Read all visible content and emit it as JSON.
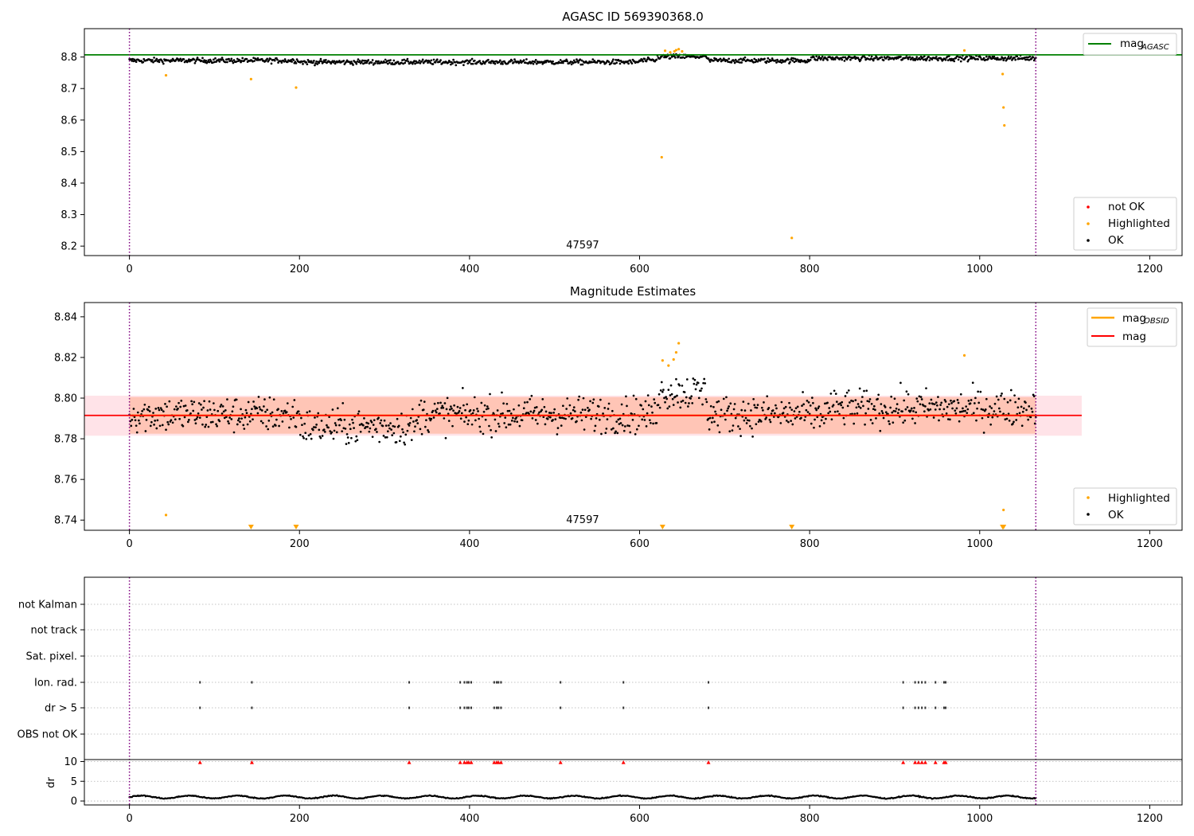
{
  "chart_data": [
    {
      "type": "scatter",
      "title": "AGASC ID 569390368.0",
      "xlim": [
        -53,
        1238
      ],
      "ylim": [
        8.17,
        8.89
      ],
      "xticks": [
        0,
        200,
        400,
        600,
        800,
        1000,
        1200
      ],
      "xtick_labels": [
        "0",
        "200",
        "400",
        "600",
        "800",
        "1000",
        "1200"
      ],
      "yticks": [
        8.2,
        8.3,
        8.4,
        8.5,
        8.6,
        8.7,
        8.8
      ],
      "ytick_labels": [
        "8.2",
        "8.3",
        "8.4",
        "8.5",
        "8.6",
        "8.7",
        "8.8"
      ],
      "obsid_label": "47597",
      "obsid_label_x": 533,
      "obs_bounds": [
        0,
        1066
      ],
      "mag_agasc": 8.807,
      "legend_lines": [
        {
          "label": "mag",
          "sub": "AGASC",
          "color": "#008000"
        }
      ],
      "legend_points": [
        {
          "label": "not OK",
          "color": "#ff0000"
        },
        {
          "label": "Highlighted",
          "color": "#ffa500"
        },
        {
          "label": "OK",
          "color": "#000000"
        }
      ],
      "series": [
        {
          "name": "OK",
          "color": "#000000",
          "base": 8.79,
          "noise": 0.02
        },
        {
          "name": "Highlighted",
          "color": "#ffa500",
          "x": [
            43,
            143,
            196,
            626,
            630,
            636,
            641,
            643,
            646,
            650,
            779,
            982,
            1027,
            1028,
            1029
          ],
          "y": [
            8.742,
            8.73,
            8.703,
            8.482,
            8.82,
            8.815,
            8.818,
            8.822,
            8.825,
            8.818,
            8.226,
            8.821,
            8.746,
            8.64,
            8.583
          ]
        }
      ]
    },
    {
      "type": "scatter",
      "title": "Magnitude Estimates",
      "xlim": [
        -53,
        1238
      ],
      "ylim": [
        8.735,
        8.847
      ],
      "xticks": [
        0,
        200,
        400,
        600,
        800,
        1000,
        1200
      ],
      "xtick_labels": [
        "0",
        "200",
        "400",
        "600",
        "800",
        "1000",
        "1200"
      ],
      "yticks": [
        8.74,
        8.76,
        8.78,
        8.8,
        8.82,
        8.84
      ],
      "ytick_labels": [
        "8.74",
        "8.76",
        "8.78",
        "8.80",
        "8.82",
        "8.84"
      ],
      "obsid_label": "47597",
      "obsid_label_x": 533,
      "obs_bounds": [
        0,
        1066
      ],
      "mag_obsid": 8.7915,
      "mag": 8.7915,
      "band_obsid": [
        8.7825,
        8.8005
      ],
      "band_mag": [
        8.7815,
        8.8012
      ],
      "legend_lines": [
        {
          "label": "mag",
          "sub": "OBSID",
          "color": "#ffa500"
        },
        {
          "label": "mag",
          "sub": "",
          "color": "#ff0000"
        }
      ],
      "legend_points": [
        {
          "label": "Highlighted",
          "color": "#ffa500"
        },
        {
          "label": "OK",
          "color": "#000000"
        }
      ],
      "series": [
        {
          "name": "OK",
          "color": "#000000"
        },
        {
          "name": "Highlighted",
          "color": "#ffa500",
          "x": [
            43,
            627,
            634,
            640,
            643,
            646,
            982,
            1028
          ],
          "y": [
            8.7425,
            8.8185,
            8.816,
            8.819,
            8.8225,
            8.827,
            8.821,
            8.745
          ]
        },
        {
          "name": "Highlighted (below range)",
          "color": "#ffa500",
          "marker": "triangle-down",
          "x": [
            143,
            196,
            627,
            779,
            1027,
            1028
          ]
        }
      ]
    },
    {
      "type": "scatter",
      "title": "",
      "xlim": [
        -53,
        1238
      ],
      "xticks": [
        0,
        200,
        400,
        600,
        800,
        1000,
        1200
      ],
      "xtick_labels": [
        "0",
        "200",
        "400",
        "600",
        "800",
        "1000",
        "1200"
      ],
      "obs_bounds": [
        0,
        1066
      ],
      "flag_rows": [
        "not Kalman",
        "not track",
        "Sat. pixel.",
        "Ion. rad.",
        "dr > 5",
        "OBS not OK"
      ],
      "flag_x": [
        83,
        144,
        329,
        389,
        394,
        397,
        399,
        402,
        429,
        432,
        434,
        437,
        507,
        581,
        681,
        910,
        924,
        928,
        932,
        936,
        948,
        958,
        960
      ],
      "flagged_rows": [
        "Ion. rad.",
        "dr > 5"
      ],
      "dr_ylabel": "dr",
      "dr_ylim": [
        -1,
        10.5
      ],
      "dr_yticks": [
        0,
        5,
        10
      ],
      "dr_ytick_labels": [
        "0",
        "5",
        "10"
      ],
      "dr_typical": 1.0
    }
  ]
}
